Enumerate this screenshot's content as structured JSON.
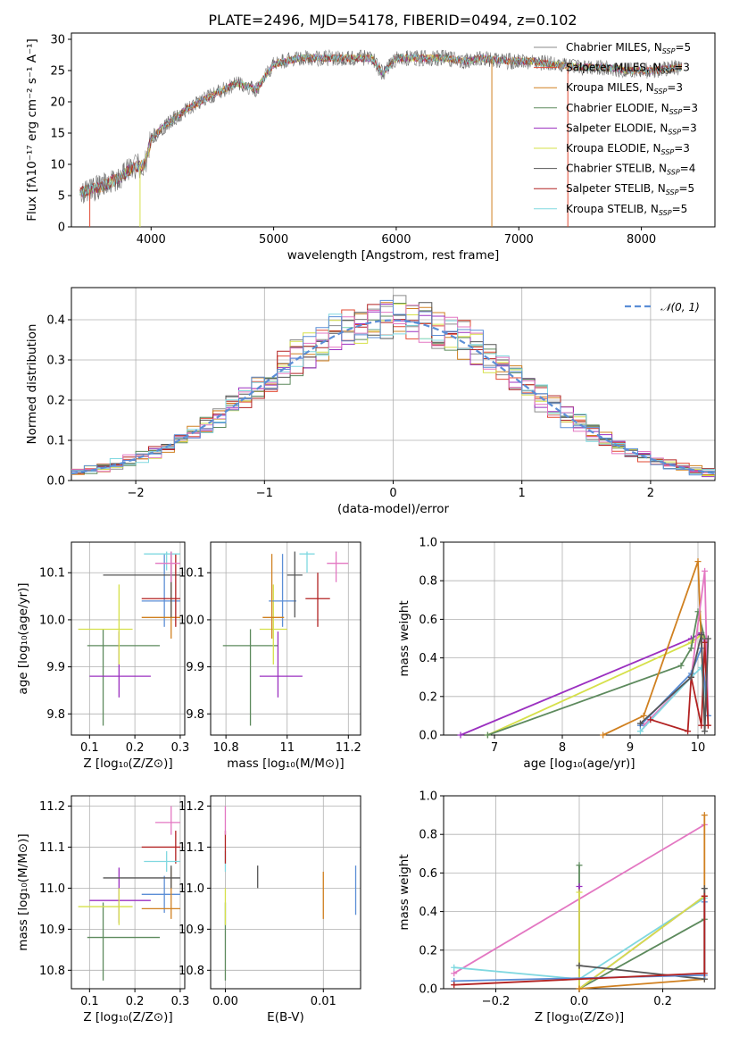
{
  "figure": {
    "title": "PLATE=2496, MJD=54178, FIBERID=0494, z=0.102"
  },
  "chart_data": [
    {
      "type": "line",
      "name": "spectrum",
      "xlabel": "wavelength [Angstrom, rest frame]",
      "ylabel": "Flux [fλ10⁻¹⁷ erg cm⁻² s⁻¹ A⁻¹]",
      "xlim": [
        3350,
        8600
      ],
      "ylim": [
        0,
        31
      ],
      "xticks": [
        4000,
        5000,
        6000,
        7000,
        8000
      ],
      "yticks": [
        0,
        5,
        10,
        15,
        20,
        25,
        30
      ],
      "legend_position": "right",
      "continuum": {
        "wavelength": [
          3420,
          3600,
          3750,
          3850,
          3950,
          4000,
          4100,
          4300,
          4500,
          4700,
          4860,
          5000,
          5200,
          5400,
          5600,
          5800,
          5890,
          6000,
          6200,
          6400,
          6560,
          6700,
          6900,
          7100,
          7300,
          7500,
          7700,
          7900,
          8100,
          8300
        ],
        "flux": [
          5.5,
          6.5,
          8.0,
          9.5,
          10.0,
          14.0,
          16.0,
          19.0,
          21.0,
          23.0,
          22.0,
          26.0,
          27.0,
          27.0,
          27.0,
          27.0,
          24.5,
          27.0,
          27.0,
          27.0,
          26.5,
          27.0,
          26.5,
          26.5,
          26.0,
          25.5,
          25.5,
          25.0,
          25.0,
          25.5
        ]
      },
      "series": [
        {
          "label": "Chabrier MILES, N",
          "n_ssp": "=5",
          "color": "#8a8a8a"
        },
        {
          "label": "Salpeter MILES, N",
          "n_ssp": "=3",
          "color": "#e24a33"
        },
        {
          "label": "Kroupa MILES, N",
          "n_ssp": "=3",
          "color": "#d08020"
        },
        {
          "label": "Chabrier ELODIE, N",
          "n_ssp": "=3",
          "color": "#5d8a5d"
        },
        {
          "label": "Salpeter ELODIE, N",
          "n_ssp": "=3",
          "color": "#9b30c0"
        },
        {
          "label": "Kroupa ELODIE, N",
          "n_ssp": "=3",
          "color": "#d6e04a"
        },
        {
          "label": "Chabrier STELIB, N",
          "n_ssp": "=4",
          "color": "#555555"
        },
        {
          "label": "Salpeter STELIB, N",
          "n_ssp": "=5",
          "color": "#b22222"
        },
        {
          "label": "Kroupa STELIB, N",
          "n_ssp": "=5",
          "color": "#80d8e0"
        }
      ],
      "subscript": "SSP"
    },
    {
      "type": "line",
      "name": "residual-histogram",
      "xlabel": "(data-model)/error",
      "ylabel": "Normed distribution",
      "xlim": [
        -2.5,
        2.5
      ],
      "ylim": [
        0,
        0.48
      ],
      "xticks": [
        -2,
        -1,
        0,
        1,
        2
      ],
      "yticks": [
        0.0,
        0.1,
        0.2,
        0.3,
        0.4
      ],
      "grid": true,
      "reference_label": "𝒩(0, 1)",
      "reference_color": "#5b8ed6",
      "bin_width": 0.1,
      "bin_start": -2.5,
      "histogram_colors": [
        "#8a8a8a",
        "#e24a33",
        "#d08020",
        "#5d8a5d",
        "#9b30c0",
        "#d6e04a",
        "#555555",
        "#b22222",
        "#80d8e0",
        "#e377c2",
        "#5b8ed6"
      ]
    },
    {
      "type": "scatter",
      "name": "age-vs-Z",
      "xlabel": "Z [log₁₀(Z/Z⊙)]",
      "ylabel": "age  [log₁₀(age/yr)]",
      "xlim": [
        0.06,
        0.31
      ],
      "ylim": [
        9.755,
        10.165
      ],
      "xticks": [
        0.1,
        0.2,
        0.3
      ],
      "yticks": [
        9.8,
        9.9,
        10.0,
        10.1
      ],
      "grid": true,
      "points": [
        {
          "x": 0.13,
          "y": 9.945,
          "xerr": [
            0.095,
            0.255
          ],
          "yerr": [
            9.775,
            9.98
          ],
          "color": "#5d8a5d"
        },
        {
          "x": 0.165,
          "y": 9.88,
          "xerr": [
            0.1,
            0.235
          ],
          "yerr": [
            9.835,
            9.975
          ],
          "color": "#9b30c0"
        },
        {
          "x": 0.165,
          "y": 9.98,
          "xerr": [
            0.075,
            0.195
          ],
          "yerr": [
            9.905,
            10.075
          ],
          "color": "#d6e04a"
        },
        {
          "x": 0.265,
          "y": 10.04,
          "xerr": [
            0.215,
            0.3
          ],
          "yerr": [
            9.985,
            10.14
          ],
          "color": "#5b8ed6"
        },
        {
          "x": 0.28,
          "y": 10.005,
          "xerr": [
            0.215,
            0.3
          ],
          "yerr": [
            9.96,
            10.14
          ],
          "color": "#d08020"
        },
        {
          "x": 0.28,
          "y": 10.095,
          "xerr": [
            0.13,
            0.3
          ],
          "yerr": [
            10.005,
            10.145
          ],
          "color": "#555555"
        },
        {
          "x": 0.29,
          "y": 10.045,
          "xerr": [
            0.215,
            0.3
          ],
          "yerr": [
            9.985,
            10.14
          ],
          "color": "#b22222"
        },
        {
          "x": 0.27,
          "y": 10.14,
          "xerr": [
            0.22,
            0.3
          ],
          "yerr": [
            10.105,
            10.145
          ],
          "color": "#80d8e0"
        },
        {
          "x": 0.28,
          "y": 10.12,
          "xerr": [
            0.245,
            0.3
          ],
          "yerr": [
            10.08,
            10.145
          ],
          "color": "#e377c2"
        }
      ]
    },
    {
      "type": "scatter",
      "name": "age-vs-mass",
      "xlabel": "mass [log₁₀(M/M⊙)]",
      "ylabel": "",
      "xlim": [
        10.75,
        11.24
      ],
      "ylim": [
        9.755,
        10.165
      ],
      "xticks": [
        10.8,
        11.0,
        11.2
      ],
      "yticks": [
        9.8,
        9.9,
        10.0,
        10.1
      ],
      "grid": true,
      "points": [
        {
          "x": 10.88,
          "y": 9.945,
          "xerr": [
            10.79,
            10.97
          ],
          "yerr": [
            9.775,
            9.98
          ],
          "color": "#5d8a5d"
        },
        {
          "x": 10.97,
          "y": 9.88,
          "xerr": [
            10.91,
            11.05
          ],
          "yerr": [
            9.835,
            9.975
          ],
          "color": "#9b30c0"
        },
        {
          "x": 10.955,
          "y": 9.98,
          "xerr": [
            10.91,
            11.0
          ],
          "yerr": [
            9.905,
            10.075
          ],
          "color": "#d6e04a"
        },
        {
          "x": 10.985,
          "y": 10.04,
          "xerr": [
            10.94,
            11.03
          ],
          "yerr": [
            9.985,
            10.14
          ],
          "color": "#5b8ed6"
        },
        {
          "x": 10.95,
          "y": 10.005,
          "xerr": [
            10.92,
            10.99
          ],
          "yerr": [
            9.96,
            10.14
          ],
          "color": "#d08020"
        },
        {
          "x": 11.025,
          "y": 10.095,
          "xerr": [
            11.0,
            11.05
          ],
          "yerr": [
            10.005,
            10.145
          ],
          "color": "#555555"
        },
        {
          "x": 11.1,
          "y": 10.045,
          "xerr": [
            11.06,
            11.14
          ],
          "yerr": [
            9.985,
            10.1
          ],
          "color": "#b22222"
        },
        {
          "x": 11.065,
          "y": 10.14,
          "xerr": [
            11.04,
            11.09
          ],
          "yerr": [
            10.1,
            10.145
          ],
          "color": "#80d8e0"
        },
        {
          "x": 11.16,
          "y": 10.12,
          "xerr": [
            11.13,
            11.2
          ],
          "yerr": [
            10.08,
            10.145
          ],
          "color": "#e377c2"
        }
      ]
    },
    {
      "type": "line",
      "name": "mass-weight-vs-age",
      "xlabel": "age  [log₁₀(age/yr)]",
      "ylabel": "mass weight",
      "xlim": [
        6.25,
        10.25
      ],
      "ylim": [
        0,
        1.0
      ],
      "xticks": [
        7,
        8,
        9,
        10
      ],
      "yticks": [
        0.0,
        0.2,
        0.4,
        0.6,
        0.8,
        1.0
      ],
      "grid": true,
      "series": [
        {
          "color": "#9b30c0",
          "x": [
            6.5,
            9.9,
            10.05,
            10.1
          ],
          "y": [
            0.0,
            0.5,
            0.53,
            0.48
          ]
        },
        {
          "color": "#d6e04a",
          "x": [
            6.9,
            9.9,
            10.05,
            10.1
          ],
          "y": [
            0.0,
            0.48,
            0.52,
            0.5
          ]
        },
        {
          "color": "#5d8a5d",
          "x": [
            6.9,
            9.75,
            9.9,
            10.0,
            10.1
          ],
          "y": [
            0.0,
            0.36,
            0.45,
            0.64,
            0.5
          ]
        },
        {
          "color": "#d08020",
          "x": [
            8.6,
            9.2,
            10.0,
            10.1
          ],
          "y": [
            0.0,
            0.1,
            0.9,
            0.05
          ]
        },
        {
          "color": "#e377c2",
          "x": [
            9.2,
            9.9,
            10.1,
            10.15
          ],
          "y": [
            0.05,
            0.3,
            0.85,
            0.1
          ]
        },
        {
          "color": "#80d8e0",
          "x": [
            9.15,
            9.9,
            10.05,
            10.15
          ],
          "y": [
            0.02,
            0.3,
            0.35,
            0.1
          ]
        },
        {
          "color": "#5b8ed6",
          "x": [
            9.15,
            9.9,
            10.05,
            10.15
          ],
          "y": [
            0.05,
            0.32,
            0.45,
            0.1
          ]
        },
        {
          "color": "#b22222",
          "x": [
            9.3,
            9.85,
            9.9,
            10.05,
            10.1,
            10.15
          ],
          "y": [
            0.08,
            0.02,
            0.3,
            0.05,
            0.48,
            0.05
          ]
        },
        {
          "color": "#555555",
          "x": [
            9.15,
            9.9,
            10.05,
            10.1,
            10.15
          ],
          "y": [
            0.06,
            0.3,
            0.52,
            0.02,
            0.5
          ]
        }
      ]
    },
    {
      "type": "scatter",
      "name": "mass-vs-Z",
      "xlabel": "Z [log₁₀(Z/Z⊙)]",
      "ylabel": "mass [log₁₀(M/M⊙)]",
      "xlim": [
        0.06,
        0.31
      ],
      "ylim": [
        10.755,
        11.225
      ],
      "xticks": [
        0.1,
        0.2,
        0.3
      ],
      "yticks": [
        10.8,
        10.9,
        11.0,
        11.1,
        11.2
      ],
      "grid": true,
      "points": [
        {
          "x": 0.13,
          "y": 10.88,
          "xerr": [
            0.095,
            0.255
          ],
          "yerr": [
            10.775,
            10.965
          ],
          "color": "#5d8a5d"
        },
        {
          "x": 0.165,
          "y": 10.97,
          "xerr": [
            0.1,
            0.235
          ],
          "yerr": [
            10.915,
            11.05
          ],
          "color": "#9b30c0"
        },
        {
          "x": 0.165,
          "y": 10.955,
          "xerr": [
            0.075,
            0.195
          ],
          "yerr": [
            10.91,
            11.0
          ],
          "color": "#d6e04a"
        },
        {
          "x": 0.265,
          "y": 10.985,
          "xerr": [
            0.215,
            0.3
          ],
          "yerr": [
            10.94,
            11.03
          ],
          "color": "#5b8ed6"
        },
        {
          "x": 0.28,
          "y": 10.95,
          "xerr": [
            0.215,
            0.3
          ],
          "yerr": [
            10.925,
            11.05
          ],
          "color": "#d08020"
        },
        {
          "x": 0.28,
          "y": 11.025,
          "xerr": [
            0.13,
            0.3
          ],
          "yerr": [
            11.0,
            11.055
          ],
          "color": "#555555"
        },
        {
          "x": 0.29,
          "y": 11.1,
          "xerr": [
            0.215,
            0.3
          ],
          "yerr": [
            11.06,
            11.14
          ],
          "color": "#b22222"
        },
        {
          "x": 0.27,
          "y": 11.065,
          "xerr": [
            0.22,
            0.3
          ],
          "yerr": [
            11.04,
            11.09
          ],
          "color": "#80d8e0"
        },
        {
          "x": 0.28,
          "y": 11.16,
          "xerr": [
            0.245,
            0.3
          ],
          "yerr": [
            11.13,
            11.2
          ],
          "color": "#e377c2"
        }
      ]
    },
    {
      "type": "scatter",
      "name": "mass-vs-EBV",
      "xlabel": "E(B-V)",
      "ylabel": "",
      "xlim": [
        -0.0015,
        0.0138
      ],
      "ylim": [
        10.755,
        11.225
      ],
      "xticks": [
        0.0,
        0.01
      ],
      "tick_labels": [
        "0.00",
        "0.01"
      ],
      "yticks": [
        10.8,
        10.9,
        11.0,
        11.1,
        11.2
      ],
      "grid": true,
      "points": [
        {
          "x": 0.0,
          "y": 10.88,
          "xerr": [
            0.0,
            0.0
          ],
          "yerr": [
            10.775,
            10.965
          ],
          "color": "#5d8a5d"
        },
        {
          "x": 0.0,
          "y": 10.955,
          "xerr": [
            0.0,
            0.0
          ],
          "yerr": [
            10.91,
            11.0
          ],
          "color": "#d6e04a"
        },
        {
          "x": 0.0,
          "y": 11.065,
          "xerr": [
            0.0,
            0.0
          ],
          "yerr": [
            11.04,
            11.09
          ],
          "color": "#80d8e0"
        },
        {
          "x": 0.0,
          "y": 11.1,
          "xerr": [
            0.0,
            0.0
          ],
          "yerr": [
            11.06,
            11.14
          ],
          "color": "#b22222"
        },
        {
          "x": 0.0,
          "y": 11.16,
          "xerr": [
            0.0,
            0.0
          ],
          "yerr": [
            11.13,
            11.2
          ],
          "color": "#e377c2"
        },
        {
          "x": 0.0033,
          "y": 11.025,
          "xerr": [
            0.0033,
            0.0033
          ],
          "yerr": [
            11.0,
            11.055
          ],
          "color": "#555555"
        },
        {
          "x": 0.01,
          "y": 10.985,
          "xerr": [
            0.01,
            0.01
          ],
          "yerr": [
            10.925,
            11.04
          ],
          "color": "#d08020"
        },
        {
          "x": 0.0133,
          "y": 10.99,
          "xerr": [
            0.0133,
            0.0133
          ],
          "yerr": [
            10.935,
            11.055
          ],
          "color": "#5b8ed6"
        }
      ]
    },
    {
      "type": "line",
      "name": "mass-weight-vs-Z",
      "xlabel": "Z [log₁₀(Z/Z⊙)]",
      "ylabel": "mass weight",
      "xlim": [
        -0.325,
        0.325
      ],
      "ylim": [
        0,
        1.0
      ],
      "xticks": [
        -0.2,
        0.0,
        0.2
      ],
      "tick_labels": [
        "−0.2",
        "0.0",
        "0.2"
      ],
      "yticks": [
        0.0,
        0.2,
        0.4,
        0.6,
        0.8,
        1.0
      ],
      "grid": true,
      "series": [
        {
          "color": "#e377c2",
          "x": [
            -0.3,
            0.3
          ],
          "y": [
            0.08,
            0.85
          ]
        },
        {
          "color": "#80d8e0",
          "x": [
            -0.3,
            0.0,
            0.3
          ],
          "y": [
            0.11,
            0.05,
            0.47
          ]
        },
        {
          "color": "#5d8a5d",
          "x": [
            0.0,
            0.0,
            0.3
          ],
          "y": [
            0.64,
            0.0,
            0.36
          ]
        },
        {
          "color": "#9b30c0",
          "x": [
            0.0,
            0.0,
            0.3
          ],
          "y": [
            0.53,
            0.0,
            0.48
          ]
        },
        {
          "color": "#d6e04a",
          "x": [
            0.0,
            0.0,
            0.3
          ],
          "y": [
            0.5,
            0.0,
            0.48
          ]
        },
        {
          "color": "#d08020",
          "x": [
            0.0,
            0.3,
            0.3
          ],
          "y": [
            0.0,
            0.05,
            0.9
          ]
        },
        {
          "color": "#555555",
          "x": [
            0.0,
            0.3,
            0.3
          ],
          "y": [
            0.12,
            0.05,
            0.52
          ]
        },
        {
          "color": "#5b8ed6",
          "x": [
            -0.3,
            0.3,
            0.3
          ],
          "y": [
            0.04,
            0.07,
            0.45
          ]
        },
        {
          "color": "#b22222",
          "x": [
            -0.3,
            0.3,
            0.3
          ],
          "y": [
            0.02,
            0.08,
            0.48
          ]
        }
      ]
    }
  ]
}
